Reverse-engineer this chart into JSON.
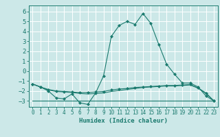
{
  "xlabel": "Humidex (Indice chaleur)",
  "bg_color": "#cce8e8",
  "grid_color": "#ffffff",
  "line_color": "#1a7a6e",
  "xlim": [
    -0.5,
    23.5
  ],
  "ylim": [
    -3.6,
    6.6
  ],
  "yticks": [
    -3,
    -2,
    -1,
    0,
    1,
    2,
    3,
    4,
    5,
    6
  ],
  "xticks": [
    0,
    1,
    2,
    3,
    4,
    5,
    6,
    7,
    8,
    9,
    10,
    11,
    12,
    13,
    14,
    15,
    16,
    17,
    18,
    19,
    20,
    21,
    22,
    23
  ],
  "series": [
    {
      "x": [
        0,
        1,
        2,
        3,
        4,
        5,
        6,
        7,
        8,
        9,
        10,
        11,
        12,
        13,
        14,
        15,
        16,
        17,
        18,
        19,
        20,
        21,
        22,
        23
      ],
      "y": [
        -1.3,
        -1.6,
        -2.0,
        -2.7,
        -2.8,
        -2.3,
        -3.2,
        -3.35,
        -2.2,
        -0.5,
        3.5,
        4.6,
        5.0,
        4.7,
        5.8,
        4.8,
        2.7,
        0.7,
        -0.3,
        -1.2,
        -1.2,
        -1.6,
        -2.5,
        -3.0
      ],
      "marker": true
    },
    {
      "x": [
        0,
        1,
        2,
        3,
        4,
        5,
        6,
        7,
        8,
        9,
        10,
        11,
        12,
        13,
        14,
        15,
        16,
        17,
        18,
        19,
        20,
        21,
        22,
        23
      ],
      "y": [
        -1.3,
        -1.6,
        -1.85,
        -2.0,
        -2.05,
        -2.1,
        -2.15,
        -2.15,
        -2.1,
        -2.05,
        -1.9,
        -1.8,
        -1.75,
        -1.65,
        -1.6,
        -1.55,
        -1.5,
        -1.45,
        -1.45,
        -1.4,
        -1.35,
        -1.7,
        -2.2,
        -3.0
      ],
      "marker": true
    },
    {
      "x": [
        0,
        1,
        2,
        3,
        4,
        5,
        6,
        7,
        8,
        9,
        10,
        11,
        12,
        13,
        14,
        15,
        16,
        17,
        18,
        19,
        20,
        21,
        22,
        23
      ],
      "y": [
        -1.3,
        -1.6,
        -1.9,
        -2.05,
        -2.1,
        -2.15,
        -2.25,
        -2.3,
        -2.25,
        -2.2,
        -2.05,
        -1.95,
        -1.85,
        -1.75,
        -1.65,
        -1.6,
        -1.55,
        -1.5,
        -1.5,
        -1.45,
        -1.4,
        -1.72,
        -2.25,
        -3.0
      ],
      "marker": false
    },
    {
      "x": [
        0,
        23
      ],
      "y": [
        -3.0,
        -3.0
      ],
      "marker": false
    }
  ]
}
